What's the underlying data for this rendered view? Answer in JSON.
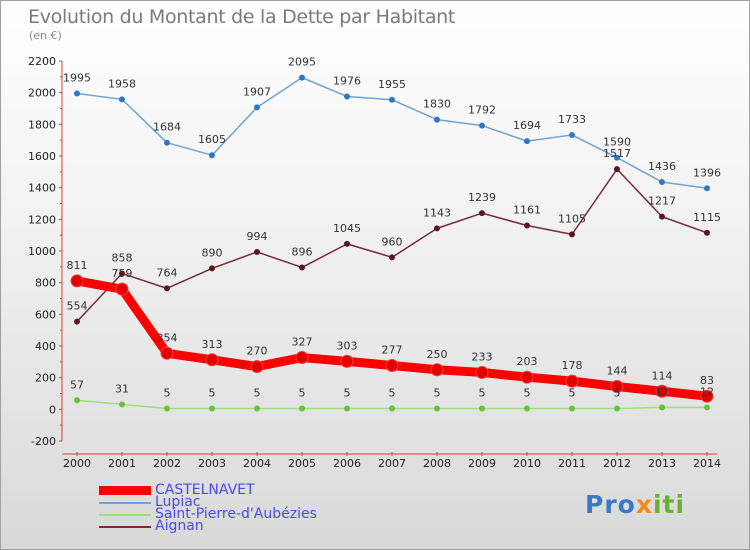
{
  "title": "Evolution du Montant de la Dette par Habitant",
  "subtitle": "(en €)",
  "brand": {
    "p1": "Pro",
    "p2": "x",
    "p3": "iti"
  },
  "chart_data": {
    "type": "line",
    "categories": [
      "2000",
      "2001",
      "2002",
      "2003",
      "2004",
      "2005",
      "2006",
      "2007",
      "2008",
      "2009",
      "2010",
      "2011",
      "2012",
      "2013",
      "2014"
    ],
    "ylim": [
      -200,
      2200
    ],
    "yticks": [
      -200,
      0,
      200,
      400,
      600,
      800,
      1000,
      1200,
      1400,
      1600,
      1800,
      2000,
      2200
    ],
    "grid": false,
    "legend_position": "bottom-left",
    "series": [
      {
        "name": "CASTELNAVET",
        "color": "#ff0000",
        "marker_color": "#e00000",
        "values": [
          811,
          759,
          354,
          313,
          270,
          327,
          303,
          277,
          250,
          233,
          203,
          178,
          144,
          114,
          83
        ]
      },
      {
        "name": "Lupiac",
        "color": "#6ea3d8",
        "marker_color": "#2e78c2",
        "values": [
          1995,
          1958,
          1684,
          1605,
          1907,
          2095,
          1976,
          1955,
          1830,
          1792,
          1694,
          1733,
          1590,
          1436,
          1396
        ]
      },
      {
        "name": "Saint-Pierre-d'Aubézies",
        "color": "#9be07a",
        "marker_color": "#66c23a",
        "values": [
          57,
          31,
          5,
          5,
          5,
          5,
          5,
          5,
          5,
          5,
          5,
          5,
          5,
          12,
          12
        ]
      },
      {
        "name": "Aignan",
        "color": "#7a2a35",
        "marker_color": "#5a1520",
        "values": [
          554,
          858,
          764,
          890,
          994,
          896,
          1045,
          960,
          1143,
          1239,
          1161,
          1105,
          1517,
          1217,
          1115
        ]
      }
    ]
  }
}
